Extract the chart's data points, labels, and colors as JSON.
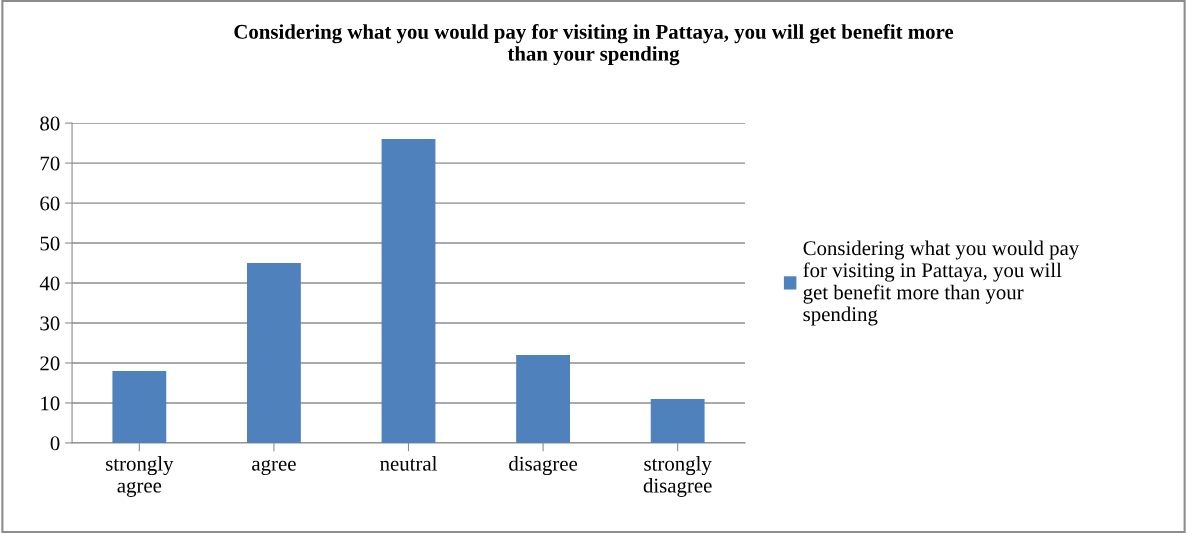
{
  "chart_data": {
    "type": "bar",
    "title": "Considering what you would pay for visiting in Pattaya, you will get benefit more than your spending",
    "categories": [
      "strongly agree",
      "agree",
      "neutral",
      "disagree",
      "strongly disagree"
    ],
    "series": [
      {
        "name": "Considering what you would pay for visiting in Pattaya, you will get benefit more than your spending",
        "color": "#4f81bd",
        "values": [
          18,
          45,
          76,
          22,
          11
        ]
      }
    ],
    "ylim": [
      0,
      80
    ],
    "yticks": [
      0,
      10,
      20,
      30,
      40,
      50,
      60,
      70,
      80
    ],
    "grid": "y",
    "legend": "right"
  }
}
